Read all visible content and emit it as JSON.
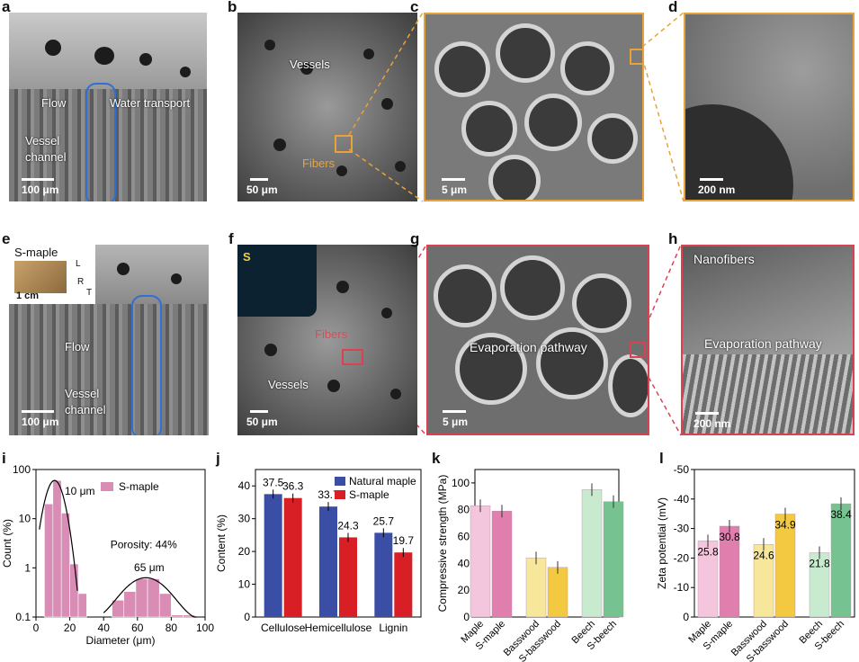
{
  "panels": {
    "a": {
      "letter": "a",
      "flow": "Flow",
      "water": "Water transport",
      "vessel1": "Vessel",
      "vessel2": "channel",
      "scale": "100 μm"
    },
    "b": {
      "letter": "b",
      "vessels": "Vessels",
      "fibers": "Fibers",
      "scale": "50 μm"
    },
    "c": {
      "letter": "c",
      "scale": "5 μm"
    },
    "d": {
      "letter": "d",
      "scale": "200 nm"
    },
    "e": {
      "letter": "e",
      "name": "S-maple",
      "flow": "Flow",
      "vessel1": "Vessel",
      "vessel2": "channel",
      "scale": "100 μm",
      "inset_scale": "1 cm",
      "axis_l": "L",
      "axis_r": "R",
      "axis_t": "T"
    },
    "f": {
      "letter": "f",
      "s_map": "S",
      "fibers": "Fibers",
      "vessels": "Vessels",
      "scale": "50 μm"
    },
    "g": {
      "letter": "g",
      "evap": "Evaporation pathway",
      "scale": "5 μm"
    },
    "h": {
      "letter": "h",
      "nano": "Nanofibers",
      "evap": "Evaporation pathway",
      "scale": "200 nm"
    }
  },
  "chart_data": [
    {
      "id": "i",
      "letter": "i",
      "type": "bar",
      "xlabel": "Diameter (μm)",
      "ylabel": "Count (%)",
      "xlim": [
        0,
        100
      ],
      "ylim": [
        0.1,
        100
      ],
      "yscale": "log",
      "xticks": [
        "0",
        "20",
        "40",
        "60",
        "80",
        "100"
      ],
      "yticks": [
        "0.1",
        "1",
        "10",
        "100"
      ],
      "legend": "S-maple",
      "series": [
        {
          "name": "S-maple",
          "bins": [
            {
              "x0": 5,
              "x1": 10,
              "y": 20
            },
            {
              "x0": 10,
              "x1": 15,
              "y": 60
            },
            {
              "x0": 15,
              "x1": 20,
              "y": 13
            },
            {
              "x0": 20,
              "x1": 25,
              "y": 1.2
            },
            {
              "x0": 25,
              "x1": 30,
              "y": 0.3
            },
            {
              "x0": 45,
              "x1": 52,
              "y": 0.22
            },
            {
              "x0": 52,
              "x1": 59,
              "y": 0.33
            },
            {
              "x0": 59,
              "x1": 66,
              "y": 0.6
            },
            {
              "x0": 66,
              "x1": 73,
              "y": 0.6
            },
            {
              "x0": 73,
              "x1": 80,
              "y": 0.3
            },
            {
              "x0": 80,
              "x1": 87,
              "y": 0.11
            },
            {
              "x0": 87,
              "x1": 94,
              "y": 0.11
            }
          ]
        }
      ],
      "annotations": [
        "10 μm",
        "65 μm",
        "Porosity: 44%"
      ]
    },
    {
      "id": "j",
      "letter": "j",
      "type": "bar",
      "ylabel": "Content (%)",
      "ylim": [
        0,
        45
      ],
      "yticks": [
        "0",
        "10",
        "20",
        "30",
        "40"
      ],
      "categories": [
        "Cellulose",
        "Hemicellulose",
        "Lignin"
      ],
      "series": [
        {
          "name": "Natural maple",
          "color": "#3b4ea6",
          "values": [
            37.5,
            33.7,
            25.7
          ]
        },
        {
          "name": "S-maple",
          "color": "#d81f26",
          "values": [
            36.3,
            24.3,
            19.7
          ]
        }
      ],
      "labels": [
        [
          "37.5",
          "33.7",
          "25.7"
        ],
        [
          "36.3",
          "24.3",
          "19.7"
        ]
      ]
    },
    {
      "id": "k",
      "letter": "k",
      "type": "bar",
      "ylabel": "Compressive strength (MPa)",
      "ylim": [
        0,
        110
      ],
      "yticks": [
        "0",
        "20",
        "40",
        "60",
        "80",
        "100"
      ],
      "categories": [
        "Maple",
        "S-maple",
        "Basswood",
        "S-basswood",
        "Beech",
        "S-beech"
      ],
      "values": [
        83,
        79,
        44,
        37,
        95,
        86
      ],
      "colors": [
        "#f4c6dd",
        "#e07fae",
        "#f7e79a",
        "#f3c941",
        "#c8ebcf",
        "#76c391"
      ]
    },
    {
      "id": "l",
      "letter": "l",
      "type": "bar",
      "ylabel": "Zeta potential (mV)",
      "ylim": [
        0,
        -50
      ],
      "yticks": [
        "0",
        "-10",
        "-20",
        "-30",
        "-40",
        "-50"
      ],
      "categories": [
        "Maple",
        "S-maple",
        "Basswood",
        "S-basswood",
        "Beech",
        "S-beech"
      ],
      "values": [
        25.8,
        30.8,
        24.6,
        34.9,
        21.8,
        38.4
      ],
      "labels": [
        "25.8",
        "30.8",
        "24.6",
        "34.9",
        "21.8",
        "38.4"
      ],
      "colors": [
        "#f4c6dd",
        "#e07fae",
        "#f7e79a",
        "#f3c941",
        "#c8ebcf",
        "#76c391"
      ]
    }
  ]
}
